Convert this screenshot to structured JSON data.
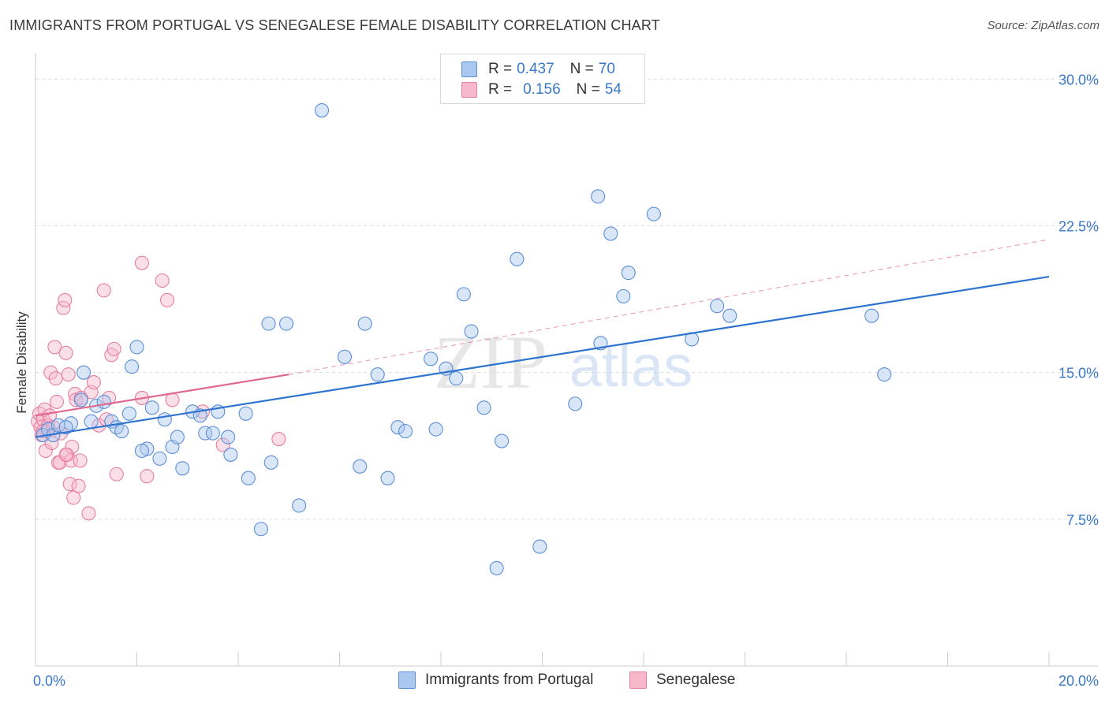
{
  "title": "IMMIGRANTS FROM PORTUGAL VS SENEGALESE FEMALE DISABILITY CORRELATION CHART",
  "source": "Source: ZipAtlas.com",
  "watermark": {
    "zip": "ZIP",
    "atlas": "atlas"
  },
  "legend": {
    "rows": [
      {
        "r_label": "R =",
        "r_value": "0.437",
        "n_label": "N =",
        "n_value": "70"
      },
      {
        "r_label": "R =",
        "r_value": "0.156",
        "n_label": "N =",
        "n_value": "54"
      }
    ]
  },
  "bottom_legend": [
    "Immigrants from Portugal",
    "Senegalese"
  ],
  "colors": {
    "blue_fill": "#aac8ef",
    "blue_stroke": "#5b8fd6",
    "blue_line": "#2f74d0",
    "pink_fill": "#f7b8cc",
    "pink_stroke": "#e77fa0",
    "pink_line": "#e06890",
    "grid": "#dddddd",
    "tick_text": "#3a78c9"
  },
  "chart_data": {
    "type": "scatter",
    "title": "IMMIGRANTS FROM PORTUGAL VS SENEGALESE FEMALE DISABILITY CORRELATION CHART",
    "xlabel": "",
    "ylabel": "Female Disability",
    "xlim": [
      0,
      20
    ],
    "ylim": [
      0,
      30.9
    ],
    "x_tick_labels": [
      "0.0%",
      "20.0%"
    ],
    "y_ticks": [
      7.5,
      15.0,
      22.5,
      30.0
    ],
    "y_tick_labels": [
      "7.5%",
      "15.0%",
      "22.5%",
      "30.0%"
    ],
    "grid": true,
    "legend_position": "top-center",
    "series": [
      {
        "name": "Immigrants from Portugal",
        "R": 0.437,
        "N": 70,
        "trend": {
          "x0": 0.0,
          "y0": 11.7,
          "x1": 20.0,
          "y1": 19.9
        },
        "points": [
          [
            0.15,
            11.8
          ],
          [
            0.25,
            12.1
          ],
          [
            0.35,
            11.8
          ],
          [
            0.45,
            12.3
          ],
          [
            0.7,
            12.4
          ],
          [
            0.9,
            13.6
          ],
          [
            0.95,
            15.0
          ],
          [
            1.1,
            12.5
          ],
          [
            1.2,
            13.3
          ],
          [
            1.35,
            13.5
          ],
          [
            1.5,
            12.5
          ],
          [
            1.6,
            12.2
          ],
          [
            1.7,
            12.0
          ],
          [
            1.85,
            12.9
          ],
          [
            1.9,
            15.3
          ],
          [
            2.0,
            16.3
          ],
          [
            2.2,
            11.1
          ],
          [
            2.3,
            13.2
          ],
          [
            2.45,
            10.6
          ],
          [
            2.55,
            12.6
          ],
          [
            2.7,
            11.2
          ],
          [
            2.8,
            11.7
          ],
          [
            2.9,
            10.1
          ],
          [
            3.1,
            13.0
          ],
          [
            3.25,
            12.8
          ],
          [
            3.35,
            11.9
          ],
          [
            3.5,
            11.9
          ],
          [
            3.6,
            13.0
          ],
          [
            3.8,
            11.7
          ],
          [
            3.85,
            10.8
          ],
          [
            4.15,
            12.9
          ],
          [
            4.2,
            9.6
          ],
          [
            4.45,
            7.0
          ],
          [
            4.6,
            17.5
          ],
          [
            4.65,
            10.4
          ],
          [
            4.95,
            17.5
          ],
          [
            5.2,
            8.2
          ],
          [
            5.65,
            28.4
          ],
          [
            6.1,
            15.8
          ],
          [
            6.4,
            10.2
          ],
          [
            6.5,
            17.5
          ],
          [
            6.75,
            14.9
          ],
          [
            6.95,
            9.6
          ],
          [
            7.15,
            12.2
          ],
          [
            7.3,
            12.0
          ],
          [
            7.8,
            15.7
          ],
          [
            7.9,
            12.1
          ],
          [
            8.1,
            15.2
          ],
          [
            8.3,
            14.7
          ],
          [
            8.45,
            19.0
          ],
          [
            8.6,
            17.1
          ],
          [
            8.85,
            13.2
          ],
          [
            9.1,
            5.0
          ],
          [
            9.2,
            11.5
          ],
          [
            9.5,
            20.8
          ],
          [
            9.95,
            6.1
          ],
          [
            10.65,
            13.4
          ],
          [
            11.1,
            24.0
          ],
          [
            11.15,
            16.5
          ],
          [
            11.35,
            22.1
          ],
          [
            11.6,
            18.9
          ],
          [
            11.7,
            20.1
          ],
          [
            12.2,
            23.1
          ],
          [
            12.95,
            16.7
          ],
          [
            13.45,
            18.4
          ],
          [
            13.7,
            17.9
          ],
          [
            16.5,
            17.9
          ],
          [
            16.75,
            14.9
          ],
          [
            0.6,
            12.2
          ],
          [
            2.1,
            11.0
          ]
        ]
      },
      {
        "name": "Senegalese",
        "R": 0.156,
        "N": 54,
        "trend_solid": {
          "x0": 0.0,
          "y0": 12.8,
          "x1": 5.0,
          "y1": 14.9
        },
        "trend_dashed": {
          "x0": 5.0,
          "y0": 14.9,
          "x1": 20.0,
          "y1": 21.8
        },
        "points": [
          [
            0.05,
            12.5
          ],
          [
            0.08,
            12.9
          ],
          [
            0.1,
            12.2
          ],
          [
            0.12,
            11.8
          ],
          [
            0.15,
            12.6
          ],
          [
            0.18,
            13.1
          ],
          [
            0.2,
            11.0
          ],
          [
            0.22,
            12.0
          ],
          [
            0.25,
            12.3
          ],
          [
            0.28,
            12.8
          ],
          [
            0.3,
            15.0
          ],
          [
            0.32,
            11.4
          ],
          [
            0.35,
            12.2
          ],
          [
            0.38,
            16.3
          ],
          [
            0.4,
            14.7
          ],
          [
            0.42,
            13.5
          ],
          [
            0.45,
            10.4
          ],
          [
            0.48,
            10.4
          ],
          [
            0.5,
            11.9
          ],
          [
            0.55,
            18.3
          ],
          [
            0.58,
            18.7
          ],
          [
            0.6,
            16.0
          ],
          [
            0.62,
            10.8
          ],
          [
            0.65,
            14.9
          ],
          [
            0.68,
            9.3
          ],
          [
            0.7,
            10.5
          ],
          [
            0.72,
            11.2
          ],
          [
            0.75,
            8.6
          ],
          [
            0.78,
            13.9
          ],
          [
            0.8,
            13.6
          ],
          [
            0.85,
            9.2
          ],
          [
            0.88,
            10.5
          ],
          [
            0.9,
            13.7
          ],
          [
            1.05,
            7.8
          ],
          [
            1.1,
            14.0
          ],
          [
            1.15,
            14.5
          ],
          [
            1.25,
            12.3
          ],
          [
            1.35,
            19.2
          ],
          [
            1.4,
            12.6
          ],
          [
            1.45,
            13.7
          ],
          [
            1.5,
            15.9
          ],
          [
            1.55,
            16.2
          ],
          [
            1.6,
            9.8
          ],
          [
            2.1,
            20.6
          ],
          [
            2.1,
            13.7
          ],
          [
            2.2,
            9.7
          ],
          [
            2.5,
            19.7
          ],
          [
            2.6,
            18.7
          ],
          [
            2.7,
            13.6
          ],
          [
            3.3,
            13.0
          ],
          [
            3.7,
            11.3
          ],
          [
            4.8,
            11.6
          ],
          [
            0.6,
            10.8
          ],
          [
            0.15,
            12.0
          ]
        ]
      }
    ]
  }
}
